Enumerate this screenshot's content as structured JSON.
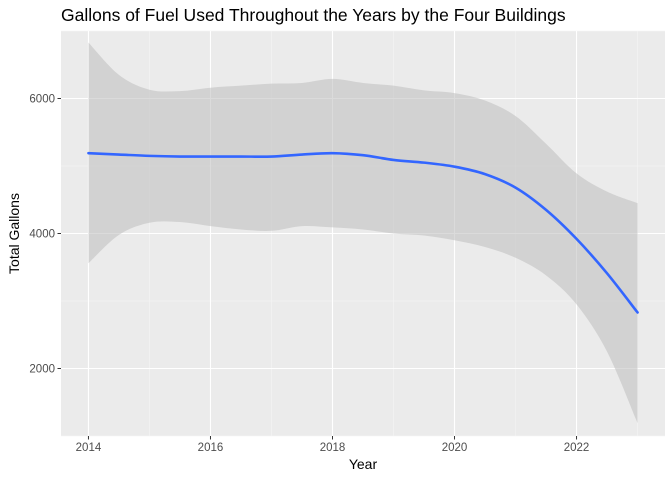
{
  "chart_data": {
    "type": "line",
    "title": "Gallons of Fuel Used Throughout the Years by the Four Buildings",
    "xlabel": "Year",
    "ylabel": "Total Gallons",
    "xlim": [
      2013.55,
      2023.45
    ],
    "ylim": [
      1000,
      7000
    ],
    "x_ticks": [
      2014,
      2016,
      2018,
      2020,
      2022
    ],
    "y_ticks": [
      2000,
      4000,
      6000
    ],
    "grid": true,
    "legend": "none",
    "colors": {
      "panel": "#ebebeb",
      "grid_major": "#ffffff",
      "line": "#3366ff",
      "band": "#bebebe"
    },
    "series": [
      {
        "x": [
          2014,
          2014.5,
          2015,
          2015.5,
          2016,
          2016.5,
          2017,
          2017.5,
          2018,
          2018.5,
          2019,
          2019.5,
          2020,
          2020.5,
          2021,
          2021.5,
          2022,
          2022.5,
          2023
        ],
        "values": [
          5190,
          5170,
          5150,
          5140,
          5140,
          5140,
          5140,
          5170,
          5190,
          5160,
          5090,
          5050,
          4990,
          4880,
          4680,
          4350,
          3920,
          3410,
          2830
        ],
        "lower": [
          3560,
          3980,
          4160,
          4170,
          4110,
          4060,
          4040,
          4110,
          4090,
          4060,
          4000,
          3970,
          3900,
          3800,
          3640,
          3380,
          2950,
          2250,
          1190
        ],
        "upper": [
          6830,
          6350,
          6130,
          6110,
          6160,
          6190,
          6220,
          6230,
          6290,
          6230,
          6190,
          6120,
          6080,
          5970,
          5740,
          5330,
          4890,
          4620,
          4450
        ]
      }
    ]
  }
}
